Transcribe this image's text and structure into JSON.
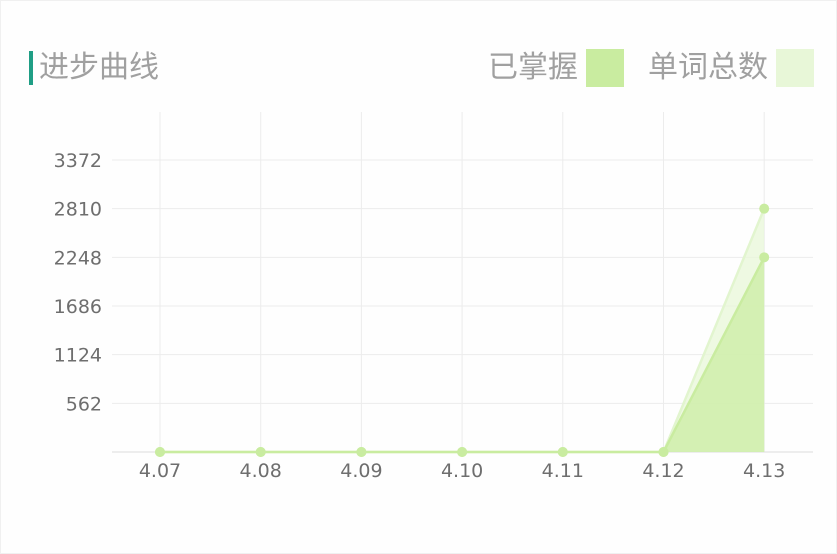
{
  "title": "进步曲线",
  "legend": {
    "mastered": "已掌握",
    "total": "单词总数"
  },
  "colors": {
    "accent_bar": "#1f9e85",
    "mastered": "#c9eca0",
    "total": "#e8f7d8",
    "grid": "#ececec",
    "point": "#c9eca0"
  },
  "chart_data": {
    "type": "area",
    "categories": [
      "4.07",
      "4.08",
      "4.09",
      "4.10",
      "4.11",
      "4.12",
      "4.13"
    ],
    "series": [
      {
        "name": "单词总数",
        "values": [
          0,
          0,
          0,
          0,
          0,
          0,
          2810
        ]
      },
      {
        "name": "已掌握",
        "values": [
          0,
          0,
          0,
          0,
          0,
          0,
          2248
        ]
      }
    ],
    "yticks": [
      "562",
      "1124",
      "1686",
      "2248",
      "2810",
      "3372"
    ],
    "ylim": [
      0,
      3372
    ],
    "grid": true,
    "legend_position": "top-right"
  }
}
